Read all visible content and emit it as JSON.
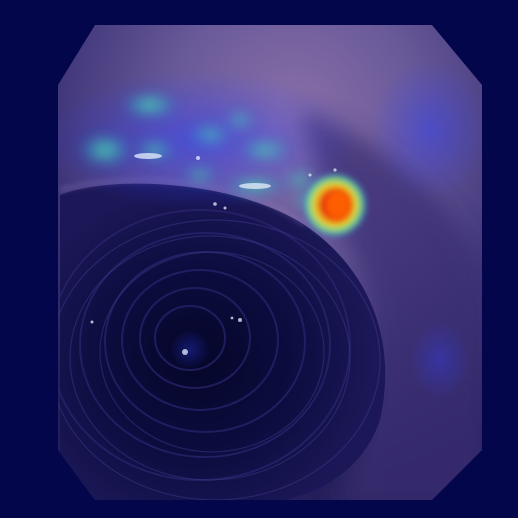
{
  "image": {
    "kind": "endoscopy-frame-with-attention-heatmap-overlay",
    "overlay_colormap": "jet",
    "colors": {
      "background": "#03064a",
      "tissue_upper": "#6a5a9a",
      "tissue_mid": "#4a3f85",
      "lumen_dark": "#0a0c3a",
      "heat_low": "#2a3be0",
      "heat_mid": "#3fe8a0",
      "heat_high": "#e03015",
      "heat_peak": "#ff6a00"
    }
  }
}
